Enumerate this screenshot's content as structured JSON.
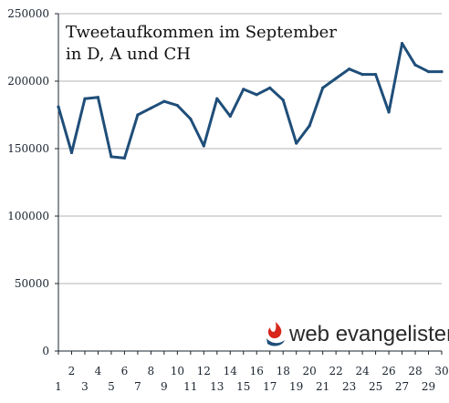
{
  "chart_data": {
    "type": "line",
    "title_lines": [
      "Tweetaufkommen im September",
      "in D, A und CH"
    ],
    "xlabel": "",
    "ylabel": "",
    "x": [
      1,
      2,
      3,
      4,
      5,
      6,
      7,
      8,
      9,
      10,
      11,
      12,
      13,
      14,
      15,
      16,
      17,
      18,
      19,
      20,
      21,
      22,
      23,
      24,
      25,
      26,
      27,
      28,
      29,
      30
    ],
    "series": [
      {
        "values": [
          181000,
          147000,
          187000,
          188000,
          144000,
          143000,
          175000,
          180000,
          185000,
          182000,
          172000,
          152000,
          187000,
          174000,
          194000,
          190000,
          195000,
          186000,
          154000,
          167000,
          195000,
          202000,
          209000,
          205000,
          205000,
          177000,
          228000,
          212000,
          207000,
          207000
        ]
      }
    ],
    "ylim": [
      0,
      250000
    ],
    "yticks": [
      0,
      50000,
      100000,
      150000,
      200000,
      250000
    ],
    "ytick_labels": [
      "0",
      "50000",
      "100000",
      "150000",
      "200000",
      "250000"
    ],
    "xtick_labels": [
      "1",
      "2",
      "3",
      "4",
      "5",
      "6",
      "7",
      "8",
      "9",
      "10",
      "11",
      "12",
      "13",
      "14",
      "15",
      "16",
      "17",
      "18",
      "19",
      "20",
      "21",
      "22",
      "23",
      "24",
      "25",
      "26",
      "27",
      "28",
      "29",
      "30"
    ],
    "grid": true,
    "line_color": "#1f4e79",
    "grid_color": "#b3b3b3",
    "axis_color": "#1b2430"
  },
  "logo": {
    "text": "web evangelisten",
    "icon": "flame-logo-icon",
    "icon_color": "#d8261c",
    "icon_dark": "#1f4e79"
  }
}
